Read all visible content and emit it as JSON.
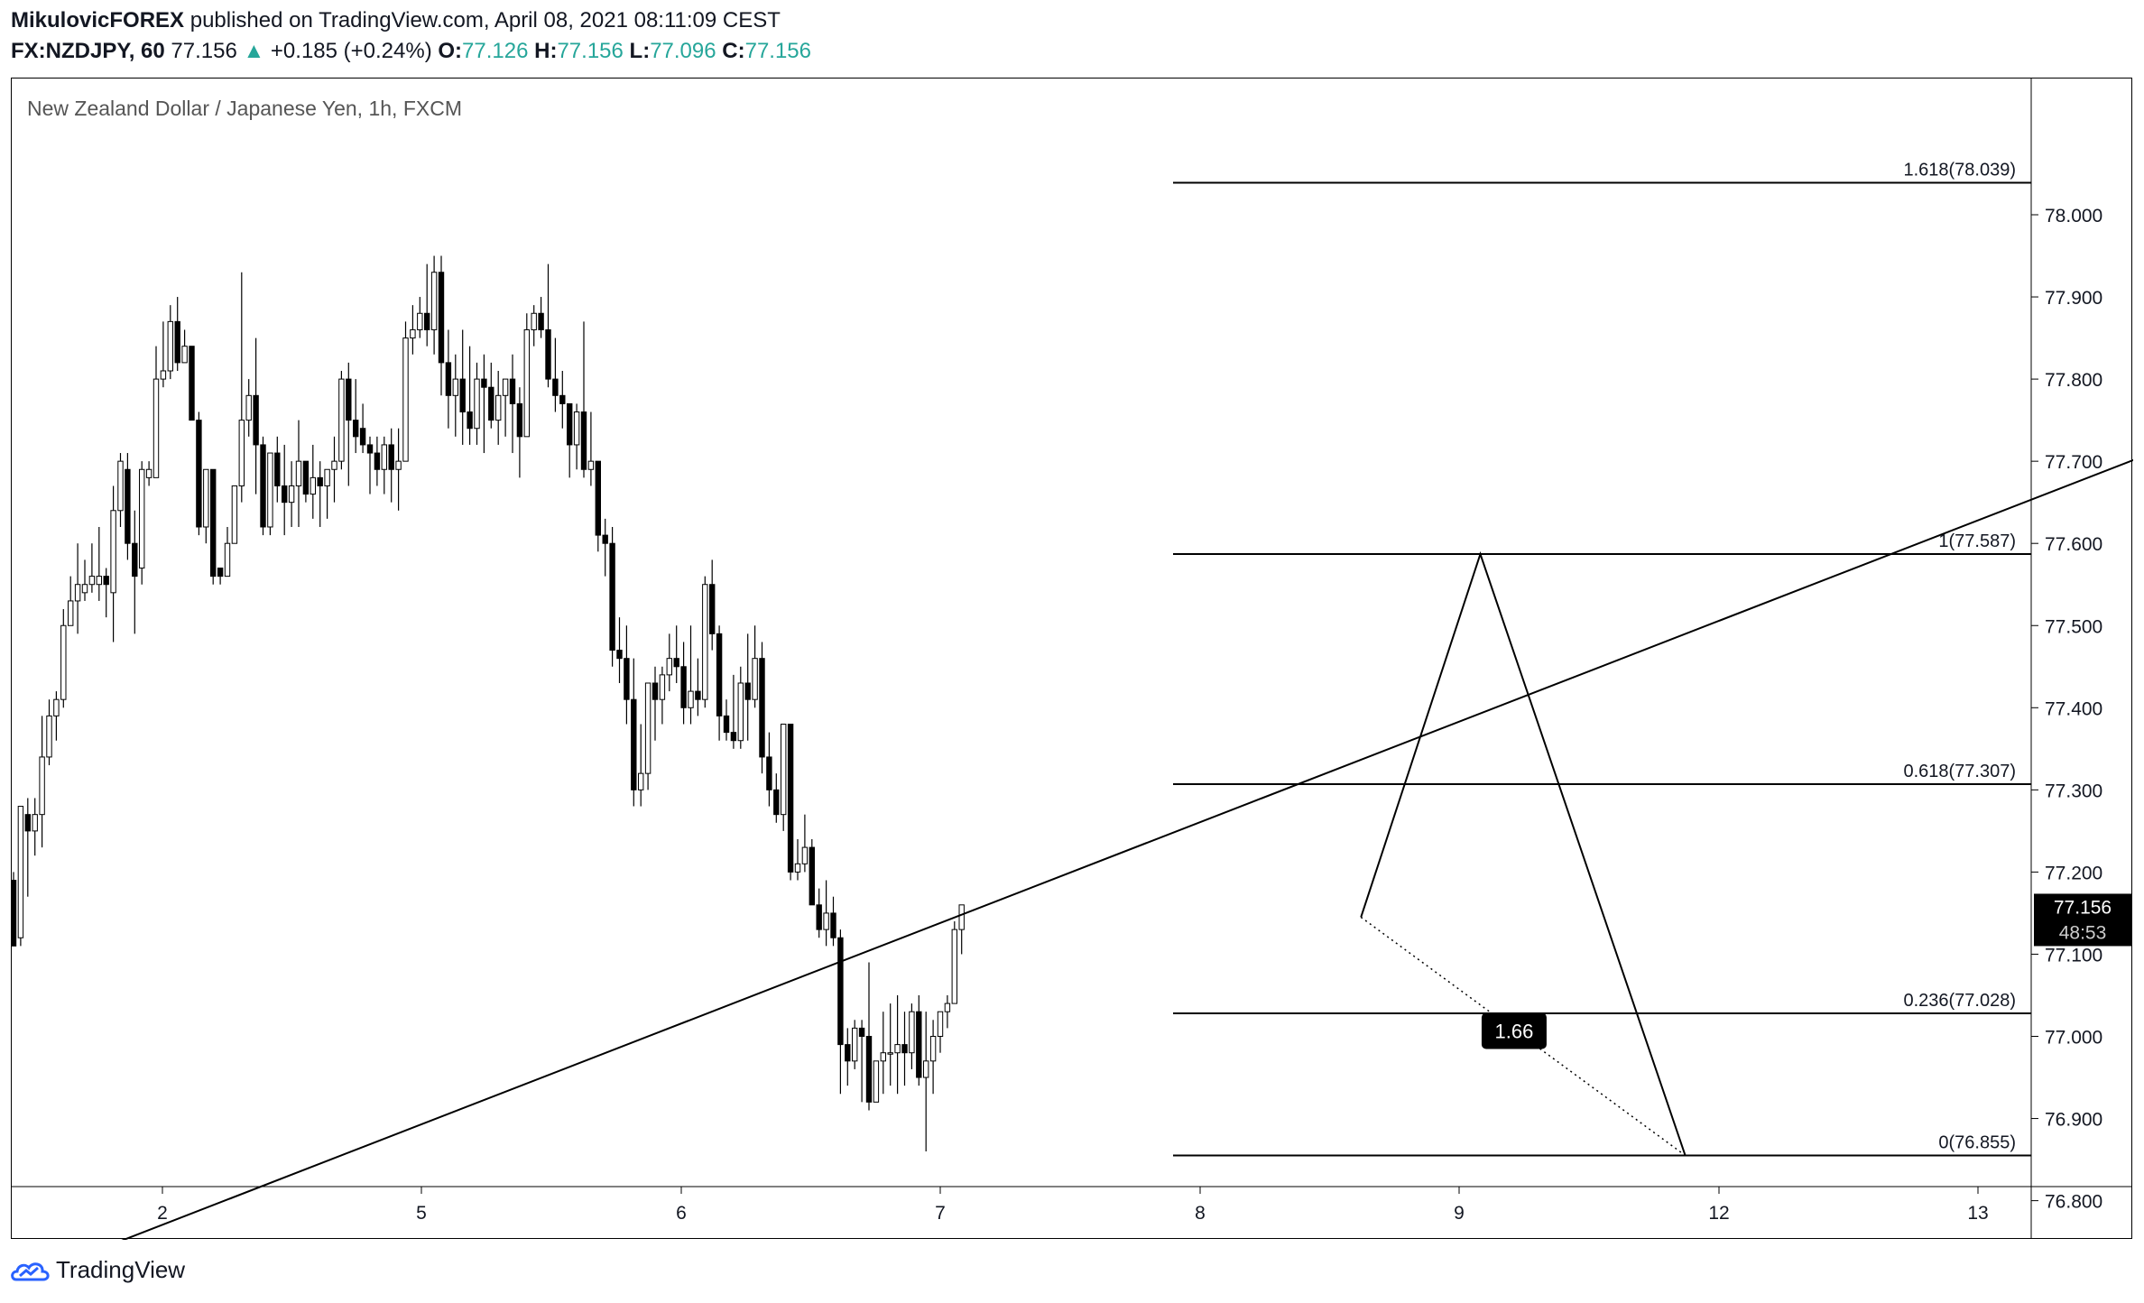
{
  "header": {
    "author": "MikulovicFOREX",
    "published": "published on TradingView.com, April 08, 2021 08:11:09 CEST",
    "symbol": "FX:NZDJPY, 60",
    "last": "77.156",
    "up_arrow": "▲",
    "change": "+0.185 (+0.24%)",
    "o_label": "O:",
    "o_value": "77.126",
    "h_label": "H:",
    "h_value": "77.156",
    "l_label": "L:",
    "l_value": "77.096",
    "c_label": "C:",
    "c_value": "77.156"
  },
  "colors": {
    "text": "#131722",
    "up": "#26a69a",
    "brand": "#2962ff"
  },
  "footer": {
    "brand": "TradingView",
    "logo_icon": "tradingview-cloud-icon"
  },
  "chart_data": {
    "type": "candlestick",
    "title": "New Zealand Dollar / Japanese Yen, 1h, FXCM",
    "x_ticks": [
      "2",
      "5",
      "6",
      "7",
      "8",
      "9",
      "12",
      "13"
    ],
    "y_ticks": [
      "76.800",
      "76.900",
      "77.000",
      "77.100",
      "77.200",
      "77.300",
      "77.400",
      "77.500",
      "77.600",
      "77.700",
      "77.800",
      "77.900",
      "78.000"
    ],
    "ylim": [
      76.74,
      78.1
    ],
    "price_label": {
      "value": "77.156",
      "countdown": "48:53"
    },
    "fib_levels": [
      {
        "label": "1.618(78.039)",
        "value": 78.039
      },
      {
        "label": "1(77.587)",
        "value": 77.587
      },
      {
        "label": "0.618(77.307)",
        "value": 77.307
      },
      {
        "label": "0.236(77.028)",
        "value": 77.028
      },
      {
        "label": "0(76.855)",
        "value": 76.855
      }
    ],
    "trendline": [
      {
        "x": 1.75,
        "y": 76.74
      },
      {
        "x": 12.85,
        "y": 78.1
      }
    ],
    "pattern_points": [
      {
        "x": 6.62,
        "y": 77.145
      },
      {
        "x": 7.08,
        "y": 77.587
      },
      {
        "x": 7.87,
        "y": 76.855
      }
    ],
    "ratio_label": "1.66",
    "candles": [
      [
        77.19,
        77.11,
        77.2,
        77.11
      ],
      [
        77.12,
        77.28,
        77.28,
        77.11
      ],
      [
        77.27,
        77.25,
        77.29,
        77.17
      ],
      [
        77.25,
        77.27,
        77.29,
        77.22
      ],
      [
        77.27,
        77.34,
        77.39,
        77.23
      ],
      [
        77.34,
        77.39,
        77.41,
        77.33
      ],
      [
        77.39,
        77.41,
        77.42,
        77.36
      ],
      [
        77.41,
        77.5,
        77.52,
        77.4
      ],
      [
        77.5,
        77.53,
        77.56,
        77.5
      ],
      [
        77.53,
        77.55,
        77.6,
        77.49
      ],
      [
        77.54,
        77.55,
        77.58,
        77.53
      ],
      [
        77.55,
        77.56,
        77.6,
        77.54
      ],
      [
        77.55,
        77.56,
        77.62,
        77.53
      ],
      [
        77.56,
        77.55,
        77.57,
        77.51
      ],
      [
        77.54,
        77.64,
        77.67,
        77.48
      ],
      [
        77.64,
        77.7,
        77.71,
        77.62
      ],
      [
        77.69,
        77.6,
        77.71,
        77.58
      ],
      [
        77.6,
        77.56,
        77.64,
        77.49
      ],
      [
        77.57,
        77.69,
        77.7,
        77.55
      ],
      [
        77.68,
        77.69,
        77.7,
        77.67
      ],
      [
        77.68,
        77.8,
        77.84,
        77.68
      ],
      [
        77.8,
        77.81,
        77.87,
        77.79
      ],
      [
        77.81,
        77.87,
        77.89,
        77.8
      ],
      [
        77.87,
        77.82,
        77.9,
        77.81
      ],
      [
        77.82,
        77.84,
        77.86,
        77.82
      ],
      [
        77.84,
        77.75,
        77.84,
        77.75
      ],
      [
        77.75,
        77.62,
        77.76,
        77.61
      ],
      [
        77.62,
        77.69,
        77.69,
        77.6
      ],
      [
        77.69,
        77.56,
        77.69,
        77.55
      ],
      [
        77.57,
        77.56,
        77.57,
        77.55
      ],
      [
        77.56,
        77.6,
        77.62,
        77.56
      ],
      [
        77.6,
        77.67,
        77.67,
        77.6
      ],
      [
        77.67,
        77.75,
        77.93,
        77.65
      ],
      [
        77.75,
        77.78,
        77.8,
        77.73
      ],
      [
        77.78,
        77.72,
        77.85,
        77.66
      ],
      [
        77.72,
        77.62,
        77.73,
        77.61
      ],
      [
        77.62,
        77.71,
        77.71,
        77.61
      ],
      [
        77.71,
        77.67,
        77.73,
        77.65
      ],
      [
        77.67,
        77.65,
        77.72,
        77.61
      ],
      [
        77.65,
        77.67,
        77.7,
        77.62
      ],
      [
        77.67,
        77.7,
        77.75,
        77.62
      ],
      [
        77.7,
        77.66,
        77.7,
        77.65
      ],
      [
        77.66,
        77.68,
        77.72,
        77.63
      ],
      [
        77.68,
        77.67,
        77.7,
        77.62
      ],
      [
        77.67,
        77.69,
        77.69,
        77.63
      ],
      [
        77.69,
        77.7,
        77.73,
        77.65
      ],
      [
        77.7,
        77.8,
        77.81,
        77.69
      ],
      [
        77.8,
        77.75,
        77.82,
        77.67
      ],
      [
        77.75,
        77.73,
        77.8,
        77.71
      ],
      [
        77.74,
        77.72,
        77.77,
        77.71
      ],
      [
        77.72,
        77.71,
        77.73,
        77.66
      ],
      [
        77.71,
        77.69,
        77.73,
        77.67
      ],
      [
        77.69,
        77.72,
        77.73,
        77.66
      ],
      [
        77.72,
        77.69,
        77.74,
        77.65
      ],
      [
        77.69,
        77.7,
        77.74,
        77.64
      ],
      [
        77.7,
        77.85,
        77.87,
        77.7
      ],
      [
        77.85,
        77.86,
        77.89,
        77.83
      ],
      [
        77.86,
        77.88,
        77.9,
        77.85
      ],
      [
        77.88,
        77.86,
        77.94,
        77.84
      ],
      [
        77.86,
        77.93,
        77.95,
        77.83
      ],
      [
        77.93,
        77.82,
        77.95,
        77.78
      ],
      [
        77.82,
        77.78,
        77.86,
        77.74
      ],
      [
        77.78,
        77.8,
        77.83,
        77.73
      ],
      [
        77.8,
        77.76,
        77.86,
        77.72
      ],
      [
        77.76,
        77.74,
        77.84,
        77.72
      ],
      [
        77.74,
        77.8,
        77.82,
        77.72
      ],
      [
        77.8,
        77.79,
        77.83,
        77.71
      ],
      [
        77.79,
        77.75,
        77.82,
        77.74
      ],
      [
        77.75,
        77.78,
        77.81,
        77.72
      ],
      [
        77.78,
        77.8,
        77.8,
        77.73
      ],
      [
        77.8,
        77.77,
        77.83,
        77.71
      ],
      [
        77.77,
        77.73,
        77.79,
        77.68
      ],
      [
        77.73,
        77.86,
        77.88,
        77.73
      ],
      [
        77.86,
        77.88,
        77.89,
        77.84
      ],
      [
        77.88,
        77.86,
        77.9,
        77.85
      ],
      [
        77.86,
        77.8,
        77.94,
        77.79
      ],
      [
        77.8,
        77.78,
        77.85,
        77.76
      ],
      [
        77.78,
        77.77,
        77.81,
        77.74
      ],
      [
        77.77,
        77.72,
        77.77,
        77.68
      ],
      [
        77.72,
        77.76,
        77.77,
        77.69
      ],
      [
        77.76,
        77.69,
        77.87,
        77.68
      ],
      [
        77.69,
        77.7,
        77.76,
        77.67
      ],
      [
        77.7,
        77.61,
        77.7,
        77.59
      ],
      [
        77.61,
        77.6,
        77.63,
        77.56
      ],
      [
        77.6,
        77.47,
        77.62,
        77.45
      ],
      [
        77.47,
        77.46,
        77.51,
        77.43
      ],
      [
        77.46,
        77.41,
        77.5,
        77.38
      ],
      [
        77.41,
        77.3,
        77.46,
        77.28
      ],
      [
        77.3,
        77.32,
        77.38,
        77.28
      ],
      [
        77.32,
        77.43,
        77.43,
        77.3
      ],
      [
        77.43,
        77.41,
        77.45,
        77.36
      ],
      [
        77.41,
        77.44,
        77.45,
        77.38
      ],
      [
        77.44,
        77.46,
        77.49,
        77.42
      ],
      [
        77.46,
        77.45,
        77.5,
        77.43
      ],
      [
        77.45,
        77.4,
        77.48,
        77.38
      ],
      [
        77.4,
        77.42,
        77.5,
        77.38
      ],
      [
        77.42,
        77.41,
        77.46,
        77.39
      ],
      [
        77.41,
        77.55,
        77.56,
        77.4
      ],
      [
        77.55,
        77.49,
        77.58,
        77.47
      ],
      [
        77.49,
        77.39,
        77.5,
        77.36
      ],
      [
        77.39,
        77.37,
        77.41,
        77.36
      ],
      [
        77.37,
        77.36,
        77.44,
        77.35
      ],
      [
        77.36,
        77.43,
        77.45,
        77.35
      ],
      [
        77.43,
        77.41,
        77.49,
        77.36
      ],
      [
        77.41,
        77.46,
        77.5,
        77.4
      ],
      [
        77.46,
        77.34,
        77.48,
        77.32
      ],
      [
        77.34,
        77.3,
        77.37,
        77.28
      ],
      [
        77.3,
        77.27,
        77.32,
        77.26
      ],
      [
        77.27,
        77.38,
        77.38,
        77.25
      ],
      [
        77.38,
        77.2,
        77.38,
        77.19
      ],
      [
        77.2,
        77.21,
        77.24,
        77.19
      ],
      [
        77.21,
        77.23,
        77.27,
        77.2
      ],
      [
        77.23,
        77.16,
        77.24,
        77.16
      ],
      [
        77.16,
        77.13,
        77.18,
        77.12
      ],
      [
        77.13,
        77.15,
        77.19,
        77.11
      ],
      [
        77.15,
        77.12,
        77.17,
        77.11
      ],
      [
        77.12,
        76.99,
        77.13,
        76.93
      ],
      [
        76.99,
        76.97,
        77.01,
        76.94
      ],
      [
        76.97,
        77.01,
        77.02,
        76.96
      ],
      [
        77.01,
        77.0,
        77.02,
        76.92
      ],
      [
        77.0,
        76.92,
        77.09,
        76.91
      ],
      [
        76.92,
        76.97,
        76.97,
        76.92
      ],
      [
        76.97,
        76.98,
        77.03,
        76.93
      ],
      [
        76.98,
        76.98,
        77.04,
        76.94
      ],
      [
        76.98,
        76.99,
        77.05,
        76.93
      ],
      [
        76.99,
        76.98,
        77.03,
        76.94
      ],
      [
        76.98,
        77.03,
        77.04,
        76.96
      ],
      [
        77.03,
        76.95,
        77.05,
        76.94
      ],
      [
        76.95,
        76.97,
        77.03,
        76.86
      ],
      [
        76.97,
        77.0,
        77.02,
        76.93
      ],
      [
        77.0,
        77.03,
        77.03,
        76.98
      ],
      [
        77.03,
        77.04,
        77.05,
        77.01
      ],
      [
        77.04,
        77.13,
        77.14,
        77.04
      ],
      [
        77.13,
        77.16,
        77.16,
        77.1
      ]
    ]
  }
}
